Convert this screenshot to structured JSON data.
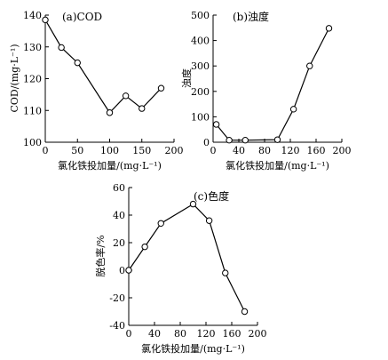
{
  "chart_data": [
    {
      "type": "line",
      "title": "(a)COD",
      "xlabel": "氯化铁投加量/(mg·L⁻¹)",
      "ylabel": "COD/(mg·L⁻¹)",
      "xlim": [
        0,
        200
      ],
      "ylim": [
        100,
        140
      ],
      "xticks": [
        0,
        50,
        100,
        150,
        200
      ],
      "yticks": [
        100,
        110,
        120,
        130,
        140
      ],
      "x": [
        0,
        25,
        50,
        100,
        125,
        150,
        180
      ],
      "y": [
        138.5,
        129.8,
        125.0,
        109.3,
        114.6,
        110.6,
        117.0
      ],
      "marker": "circle-open",
      "grid": false
    },
    {
      "type": "line",
      "title": "(b)浊度",
      "xlabel": "氯化铁投加量/(mg·L⁻¹)",
      "ylabel": "浊度",
      "xlim": [
        0,
        200
      ],
      "ylim": [
        0,
        500
      ],
      "xticks": [
        0,
        40,
        80,
        120,
        160,
        200
      ],
      "yticks": [
        0,
        100,
        200,
        300,
        400,
        500
      ],
      "x": [
        5,
        25,
        50,
        100,
        125,
        150,
        180
      ],
      "y": [
        70,
        8,
        8,
        10,
        130,
        300,
        448
      ],
      "marker": "circle-open",
      "grid": false
    },
    {
      "type": "line",
      "title": "(c)色度",
      "xlabel": "氯化铁投加量/(mg·L⁻¹)",
      "ylabel": "脱色率/%",
      "xlim": [
        0,
        200
      ],
      "ylim": [
        -40,
        60
      ],
      "xticks": [
        0,
        40,
        80,
        120,
        160,
        200
      ],
      "yticks": [
        -40,
        -20,
        0,
        20,
        40,
        60
      ],
      "x": [
        0,
        25,
        50,
        100,
        125,
        150,
        180
      ],
      "y": [
        0,
        17,
        34,
        48,
        36,
        -2,
        -30
      ],
      "marker": "circle-open",
      "grid": false
    }
  ]
}
